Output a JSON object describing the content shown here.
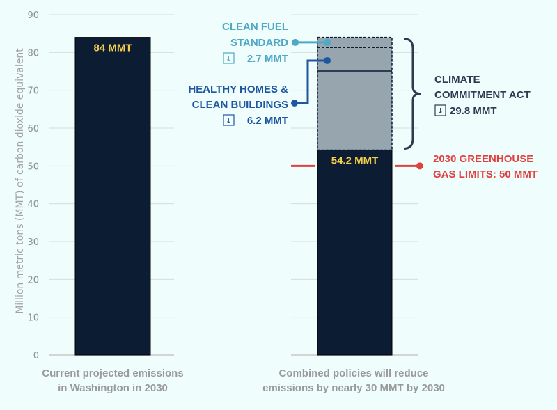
{
  "chart_data": {
    "type": "bar",
    "title": "",
    "ylabel": "Million metric tons (MMT) of carbon dioxide equivalent",
    "xlabel": "",
    "ylim": [
      0,
      90
    ],
    "yticks": [
      0,
      10,
      20,
      30,
      40,
      50,
      60,
      70,
      80,
      90
    ],
    "grid": true,
    "categories": [
      [
        "Current projected emissions",
        "in Washington in 2030"
      ],
      [
        "Combined policies will reduce",
        "emissions by nearly 30 MMT by 2030"
      ]
    ],
    "bars": [
      {
        "name": "current",
        "value": 84,
        "label": "84 MMT"
      },
      {
        "name": "combined",
        "value": 54.2,
        "label": "54.2 MMT"
      }
    ],
    "reductions": [
      {
        "name": "Clean Fuel Standard",
        "from": 84,
        "to": 81.3,
        "amount": 2.7
      },
      {
        "name": "Healthy Homes & Clean Buildings",
        "from": 81.3,
        "to": 75.1,
        "amount": 6.2
      },
      {
        "name": "Climate Commitment Act remainder",
        "from": 75.1,
        "to": 54.2
      }
    ],
    "limit": {
      "value": 50
    },
    "annotations": {
      "clean_fuel": {
        "lines": [
          "CLEAN FUEL",
          "STANDARD"
        ],
        "amount": "2.7 MMT",
        "arrow": "↓"
      },
      "healthy_homes": {
        "lines": [
          "HEALTHY HOMES &",
          "CLEAN BUILDINGS"
        ],
        "amount": "6.2 MMT",
        "arrow": "↓"
      },
      "cca": {
        "lines": [
          "CLIMATE",
          "COMMITMENT ACT"
        ],
        "amount": "29.8 MMT",
        "arrow": "↓"
      },
      "limit": {
        "lines": [
          "2030 GREENHOUSE",
          "GAS LIMITS: 50 MMT"
        ]
      }
    }
  },
  "colors": {
    "background": "#effdfd",
    "bar": "#0c1c32",
    "reduction": "#97a6ae",
    "bar_label": "#f5cf4a",
    "clean_fuel": "#4ea9c6",
    "healthy_homes": "#1f56a0",
    "cca": "#2e3a52",
    "limit": "#e0413f",
    "axis_text": "#8f8f8f",
    "grid": "#dcdcdc"
  }
}
